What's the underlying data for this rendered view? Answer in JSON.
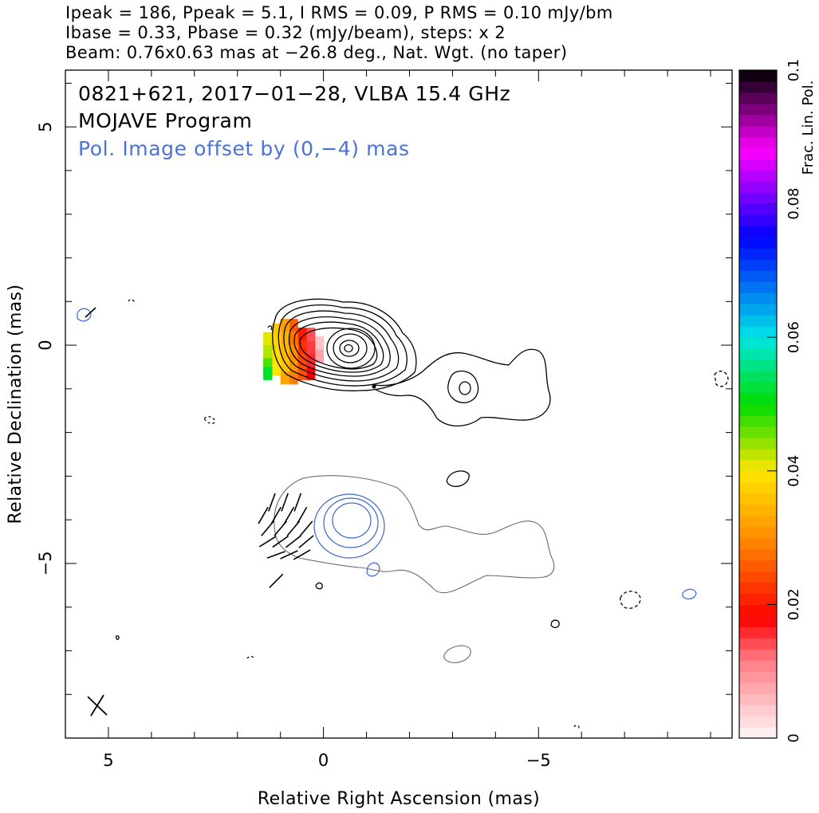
{
  "header": {
    "line1": "Ipeak = 186, Ppeak = 5.1, I RMS = 0.09, P RMS = 0.10 mJy/bm",
    "line2": "Ibase = 0.33, Pbase = 0.32 (mJy/beam), steps: x 2",
    "line3": "Beam: 0.76x0.63 mas at −26.8 deg., Nat. Wgt. (no taper)"
  },
  "plot": {
    "title1": "0821+621, 2017−01−28, VLBA 15.4 GHz",
    "title2": "MOJAVE Program",
    "title3": "Pol. Image offset by (0,−4) mas",
    "title3_color": "#4a72d8"
  },
  "colors": {
    "stokes_i_contour": "#000000",
    "polarized_contour": "#3a66d0",
    "pol_offset_i_contour": "#6a6a6a",
    "evpa_sticks": "#000000"
  },
  "chart_data": {
    "type": "contour",
    "xlabel": "Relative Right Ascension (mas)",
    "ylabel": "Relative Declination (mas)",
    "xlim": [
      6.0,
      -9.5
    ],
    "ylim": [
      -9.0,
      6.3
    ],
    "x_ticks": [
      {
        "value": 5,
        "label": "5"
      },
      {
        "value": 0,
        "label": "0"
      },
      {
        "value": -5,
        "label": "−5"
      }
    ],
    "y_ticks": [
      {
        "value": 5,
        "label": "5"
      },
      {
        "value": 0,
        "label": "0"
      },
      {
        "value": -5,
        "label": "−5"
      }
    ],
    "colorbar": {
      "label": "Frac. Lin. Pol.",
      "min": 0,
      "max": 0.1,
      "ticks": [
        {
          "value": 0,
          "label": "0"
        },
        {
          "value": 0.02,
          "label": "0.02"
        },
        {
          "value": 0.04,
          "label": "0.04"
        },
        {
          "value": 0.06,
          "label": "0.06"
        },
        {
          "value": 0.08,
          "label": "0.08"
        },
        {
          "value": 0.1,
          "label": "0.1"
        }
      ]
    },
    "core_position": [
      -0.8,
      -0.1
    ],
    "peak_intensity_mJy_per_beam": 186,
    "contour_levels_mJy_per_beam": [
      0.33,
      0.66,
      1.32,
      2.64,
      5.28,
      10.56,
      21.12,
      42.24,
      84.48
    ],
    "beam": {
      "major_mas": 0.76,
      "minor_mas": 0.63,
      "pa_deg": -26.8,
      "position": [
        5.0,
        -8.1
      ]
    },
    "polarization_offset_mas": [
      0,
      -4
    ],
    "fractional_polarization_pixels": [
      {
        "x": 0.1,
        "y": 0.1,
        "fpol": 0.005
      },
      {
        "x": 0.1,
        "y": -0.2,
        "fpol": 0.008
      },
      {
        "x": 0.3,
        "y": 0.3,
        "fpol": 0.014
      },
      {
        "x": 0.3,
        "y": 0.0,
        "fpol": 0.015
      },
      {
        "x": 0.3,
        "y": -0.3,
        "fpol": 0.016
      },
      {
        "x": 0.3,
        "y": -0.6,
        "fpol": 0.018
      },
      {
        "x": 0.5,
        "y": 0.3,
        "fpol": 0.02
      },
      {
        "x": 0.5,
        "y": 0.0,
        "fpol": 0.022
      },
      {
        "x": 0.5,
        "y": -0.3,
        "fpol": 0.024
      },
      {
        "x": 0.5,
        "y": -0.6,
        "fpol": 0.025
      },
      {
        "x": 0.7,
        "y": 0.5,
        "fpol": 0.026
      },
      {
        "x": 0.7,
        "y": 0.2,
        "fpol": 0.028
      },
      {
        "x": 0.7,
        "y": -0.1,
        "fpol": 0.03
      },
      {
        "x": 0.7,
        "y": -0.4,
        "fpol": 0.031
      },
      {
        "x": 0.7,
        "y": -0.7,
        "fpol": 0.029
      },
      {
        "x": 0.9,
        "y": 0.5,
        "fpol": 0.032
      },
      {
        "x": 0.9,
        "y": 0.2,
        "fpol": 0.034
      },
      {
        "x": 0.9,
        "y": -0.1,
        "fpol": 0.035
      },
      {
        "x": 0.9,
        "y": -0.4,
        "fpol": 0.036
      },
      {
        "x": 0.9,
        "y": -0.7,
        "fpol": 0.033
      },
      {
        "x": 1.1,
        "y": 0.4,
        "fpol": 0.037
      },
      {
        "x": 1.1,
        "y": 0.1,
        "fpol": 0.038
      },
      {
        "x": 1.1,
        "y": -0.2,
        "fpol": 0.039
      },
      {
        "x": 1.1,
        "y": -0.5,
        "fpol": 0.04
      },
      {
        "x": 1.3,
        "y": 0.2,
        "fpol": 0.041
      },
      {
        "x": 1.3,
        "y": -0.1,
        "fpol": 0.043
      },
      {
        "x": 1.3,
        "y": -0.4,
        "fpol": 0.047
      },
      {
        "x": 1.3,
        "y": -0.6,
        "fpol": 0.052
      }
    ],
    "evpa_vectors": [
      {
        "x": 0.6,
        "y": -3.6,
        "pa_deg": 20
      },
      {
        "x": 0.9,
        "y": -3.6,
        "pa_deg": 20
      },
      {
        "x": 1.2,
        "y": -3.6,
        "pa_deg": 20
      },
      {
        "x": 0.5,
        "y": -3.9,
        "pa_deg": 30
      },
      {
        "x": 0.8,
        "y": -3.9,
        "pa_deg": 30
      },
      {
        "x": 1.1,
        "y": -3.9,
        "pa_deg": 30
      },
      {
        "x": 1.4,
        "y": -3.9,
        "pa_deg": 30
      },
      {
        "x": 0.4,
        "y": -4.2,
        "pa_deg": 40
      },
      {
        "x": 0.7,
        "y": -4.2,
        "pa_deg": 40
      },
      {
        "x": 1.0,
        "y": -4.2,
        "pa_deg": 40
      },
      {
        "x": 1.3,
        "y": -4.2,
        "pa_deg": 40
      },
      {
        "x": 0.4,
        "y": -4.5,
        "pa_deg": 50
      },
      {
        "x": 0.7,
        "y": -4.5,
        "pa_deg": 52
      },
      {
        "x": 1.0,
        "y": -4.5,
        "pa_deg": 55
      },
      {
        "x": 1.3,
        "y": -4.5,
        "pa_deg": 58
      },
      {
        "x": 0.5,
        "y": -4.8,
        "pa_deg": 60
      },
      {
        "x": 0.8,
        "y": -4.8,
        "pa_deg": 65
      },
      {
        "x": 1.1,
        "y": -4.8,
        "pa_deg": 70
      },
      {
        "x": 1.1,
        "y": -5.4,
        "pa_deg": 45
      }
    ]
  }
}
